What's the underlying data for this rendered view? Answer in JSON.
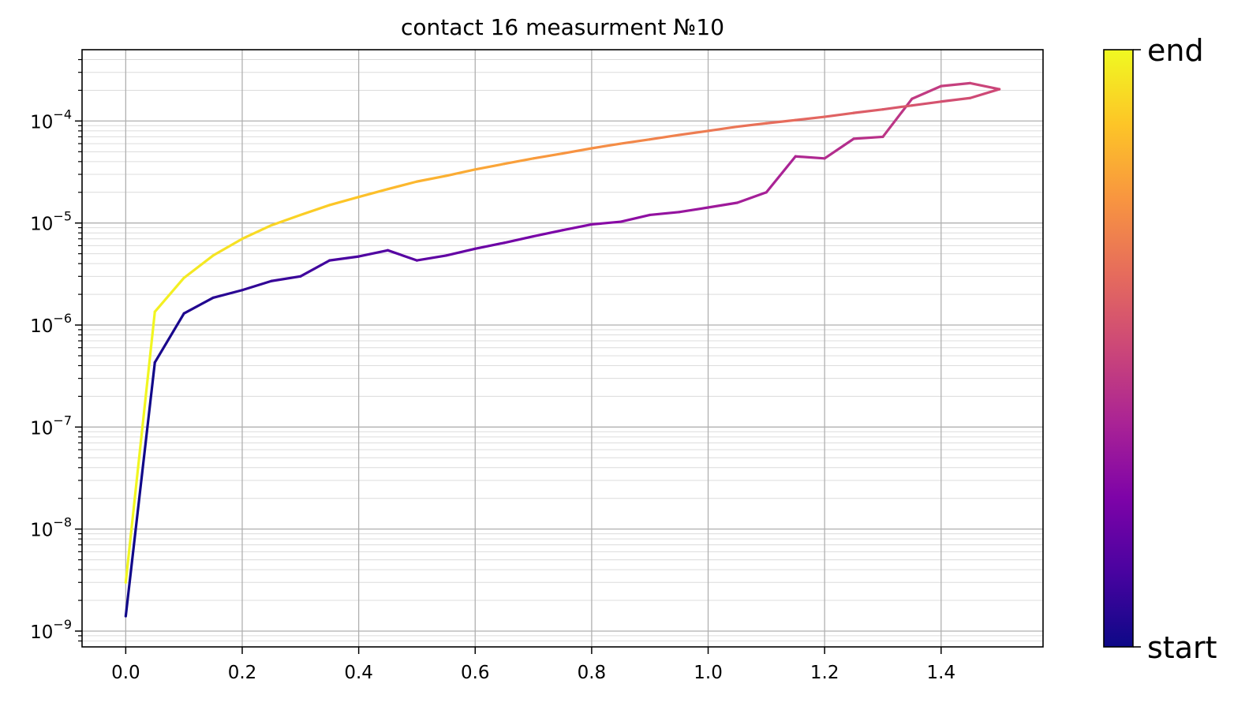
{
  "chart_data": {
    "type": "line",
    "title": "contact 16 measurment №10",
    "xlabel": "",
    "ylabel": "",
    "xlim": [
      -0.075,
      1.575
    ],
    "ylim": [
      7e-10,
      0.0005
    ],
    "y_scale": "log",
    "grid": true,
    "x_ticks": [
      0.0,
      0.2,
      0.4,
      0.6,
      0.8,
      1.0,
      1.2,
      1.4
    ],
    "x_tick_labels": [
      "0.0",
      "0.2",
      "0.4",
      "0.6",
      "0.8",
      "1.0",
      "1.2",
      "1.4"
    ],
    "y_ticks": [
      {
        "value": 1e-09,
        "mantissa": "10",
        "exponent": "−9"
      },
      {
        "value": 1e-08,
        "mantissa": "10",
        "exponent": "−8"
      },
      {
        "value": 1e-07,
        "mantissa": "10",
        "exponent": "−7"
      },
      {
        "value": 1e-06,
        "mantissa": "10",
        "exponent": "−6"
      },
      {
        "value": 1e-05,
        "mantissa": "10",
        "exponent": "−5"
      },
      {
        "value": 0.0001,
        "mantissa": "10",
        "exponent": "−4"
      }
    ],
    "colormap": "plasma",
    "colorbar": {
      "labels": {
        "start": "start",
        "end": "end"
      }
    },
    "x": [
      0.0,
      0.05,
      0.1,
      0.15,
      0.2,
      0.25,
      0.3,
      0.35,
      0.4,
      0.45,
      0.5,
      0.55,
      0.6,
      0.65,
      0.7,
      0.75,
      0.8,
      0.85,
      0.9,
      0.95,
      1.0,
      1.05,
      1.1,
      1.15,
      1.2,
      1.25,
      1.3,
      1.35,
      1.4,
      1.45,
      1.5,
      1.45,
      1.4,
      1.35,
      1.3,
      1.25,
      1.2,
      1.15,
      1.1,
      1.05,
      1.0,
      0.95,
      0.9,
      0.85,
      0.8,
      0.75,
      0.7,
      0.65,
      0.6,
      0.55,
      0.5,
      0.45,
      0.4,
      0.35,
      0.3,
      0.25,
      0.2,
      0.15,
      0.1,
      0.05,
      0.0
    ],
    "y": [
      1.4e-09,
      4.3e-07,
      1.3e-06,
      1.85e-06,
      2.2e-06,
      2.7e-06,
      3e-06,
      4.3e-06,
      4.7e-06,
      5.4e-06,
      4.3e-06,
      4.8e-06,
      5.6e-06,
      6.4e-06,
      7.4e-06,
      8.5e-06,
      9.7e-06,
      1.03e-05,
      1.2e-05,
      1.28e-05,
      1.42e-05,
      1.58e-05,
      2e-05,
      4.5e-05,
      4.3e-05,
      6.7e-05,
      7e-05,
      0.000165,
      0.00022,
      0.000235,
      0.000205,
      0.000168,
      0.000155,
      0.000142,
      0.00013,
      0.00012,
      0.00011,
      0.000102,
      9.5e-05,
      8.8e-05,
      8e-05,
      7.3e-05,
      6.6e-05,
      6e-05,
      5.4e-05,
      4.8e-05,
      4.3e-05,
      3.8e-05,
      3.35e-05,
      2.9e-05,
      2.55e-05,
      2.15e-05,
      1.8e-05,
      1.5e-05,
      1.2e-05,
      9.5e-06,
      7e-06,
      4.8e-06,
      2.9e-06,
      1.35e-06,
      3e-09
    ]
  }
}
